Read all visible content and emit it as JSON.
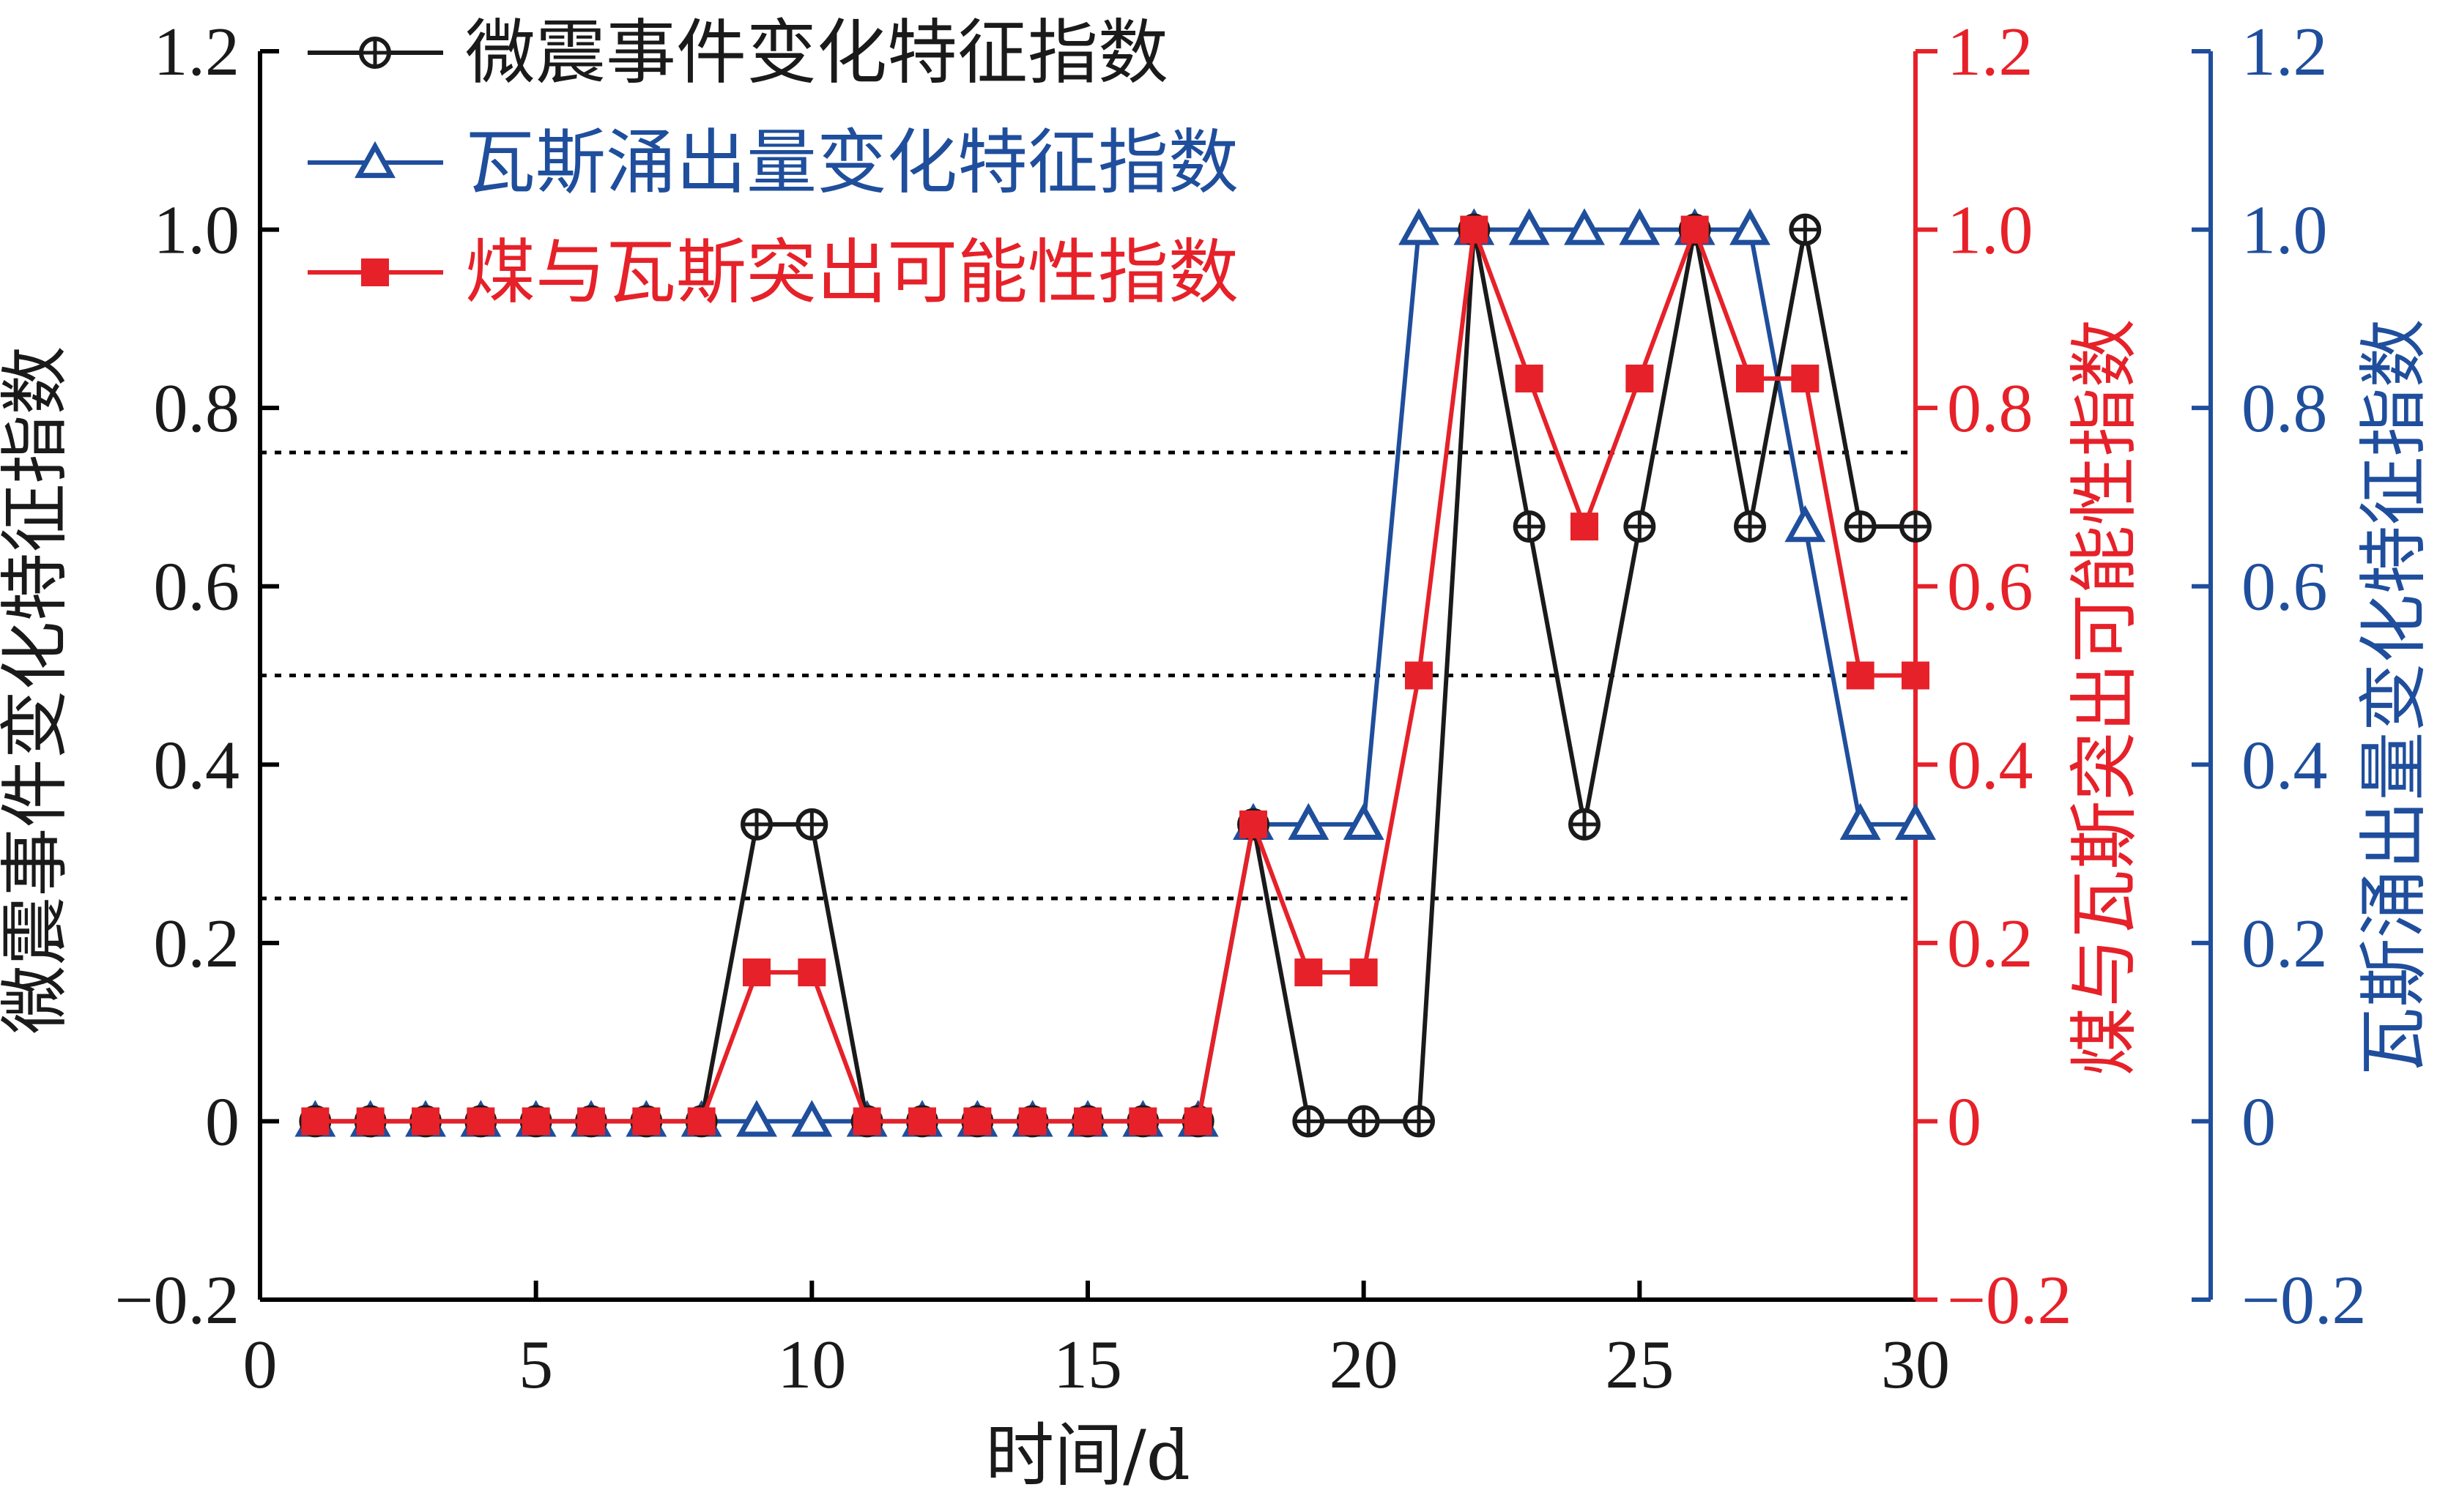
{
  "chart_data": {
    "type": "line",
    "xlabel": "时间/d",
    "x": [
      1,
      2,
      3,
      4,
      5,
      6,
      7,
      8,
      9,
      10,
      11,
      12,
      13,
      14,
      15,
      16,
      17,
      18,
      19,
      20,
      21,
      22,
      23,
      24,
      25,
      26,
      27,
      28,
      29,
      30
    ],
    "xlim": [
      0,
      30
    ],
    "x_ticks": [
      0,
      5,
      10,
      15,
      20,
      25,
      30
    ],
    "x_tick_labels": [
      "0",
      "5",
      "10",
      "15",
      "20",
      "25",
      "30"
    ],
    "y_axes": [
      {
        "id": "left",
        "label": "微震事件变化特征指数",
        "color": "#1a1a1a",
        "ylim": [
          -0.2,
          1.2
        ],
        "tick_labels": [
          "−0.2",
          "0",
          "0.2",
          "0.4",
          "0.6",
          "0.8",
          "1.0",
          "1.2"
        ]
      },
      {
        "id": "right1",
        "label": "煤与瓦斯突出可能性指数",
        "color": "#e62129",
        "ylim": [
          -0.2,
          1.2
        ],
        "tick_labels": [
          "−0.2",
          "0",
          "0.2",
          "0.4",
          "0.6",
          "0.8",
          "1.0",
          "1.2"
        ]
      },
      {
        "id": "right2",
        "label": "瓦斯涌出量变化特征指数",
        "color": "#1f4e9c",
        "ylim": [
          -0.2,
          1.2
        ],
        "tick_labels": [
          "−0.2",
          "0",
          "0.2",
          "0.4",
          "0.6",
          "0.8",
          "1.0",
          "1.2"
        ]
      }
    ],
    "y_ticks": [
      -0.2,
      0,
      0.2,
      0.4,
      0.6,
      0.8,
      1.0,
      1.2
    ],
    "reference_lines": [
      0.25,
      0.5,
      0.75
    ],
    "legend_position": "top-left",
    "series": [
      {
        "name": "微震事件变化特征指数",
        "color": "#1a1a1a",
        "marker": "circle-plus",
        "axis": "left",
        "values": [
          0,
          0,
          0,
          0,
          0,
          0,
          0,
          0,
          0.333,
          0.333,
          0,
          0,
          0,
          0,
          0,
          0,
          0,
          0.333,
          0,
          0,
          0,
          1.0,
          0.667,
          0.333,
          0.667,
          1.0,
          0.667,
          1.0,
          0.667,
          0.667
        ]
      },
      {
        "name": "瓦斯涌出量变化特征指数",
        "color": "#1f4e9c",
        "marker": "triangle",
        "axis": "right2",
        "values": [
          0,
          0,
          0,
          0,
          0,
          0,
          0,
          0,
          0,
          0,
          0,
          0,
          0,
          0,
          0,
          0,
          0,
          0.333,
          0.333,
          0.333,
          1.0,
          1.0,
          1.0,
          1.0,
          1.0,
          1.0,
          1.0,
          0.667,
          0.333,
          0.333
        ]
      },
      {
        "name": "煤与瓦斯突出可能性指数",
        "color": "#e62129",
        "marker": "square",
        "axis": "right1",
        "values": [
          0,
          0,
          0,
          0,
          0,
          0,
          0,
          0,
          0.167,
          0.167,
          0,
          0,
          0,
          0,
          0,
          0,
          0,
          0.333,
          0.167,
          0.167,
          0.5,
          1.0,
          0.833,
          0.667,
          0.833,
          1.0,
          0.833,
          0.833,
          0.5,
          0.5
        ]
      }
    ]
  }
}
